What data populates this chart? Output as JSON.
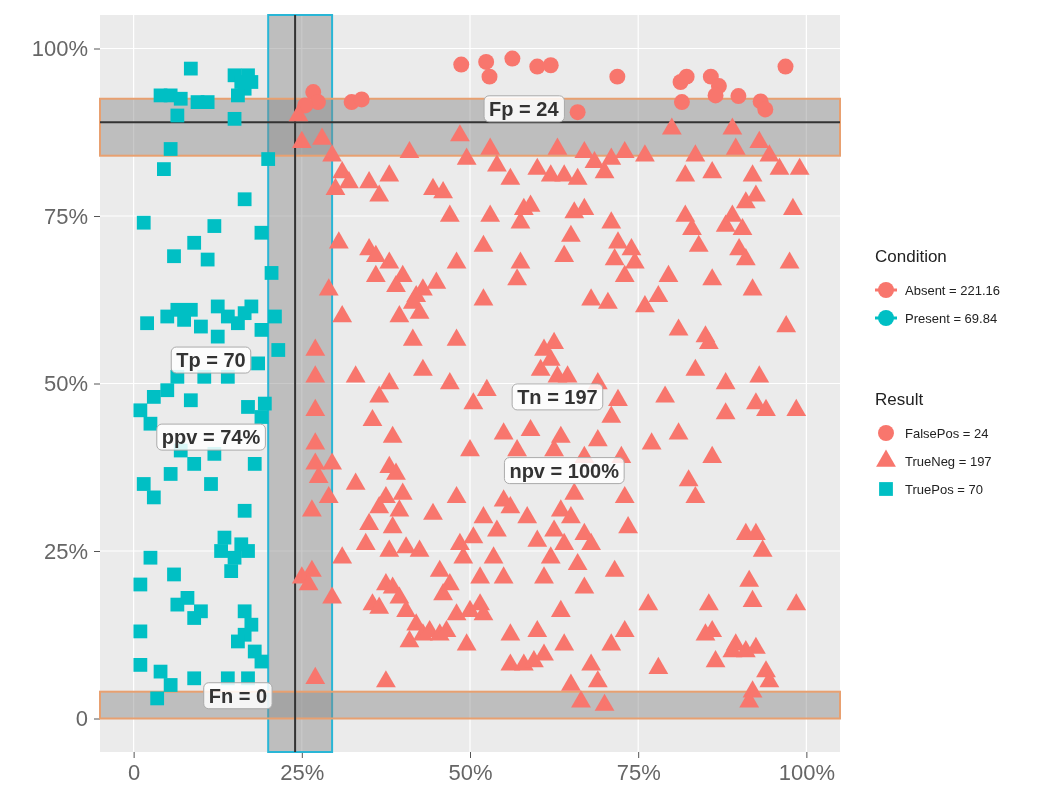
{
  "chart_data": {
    "type": "scatter",
    "xlim": [
      -5,
      105
    ],
    "ylim": [
      -5,
      105
    ],
    "xticks": [
      {
        "value": 0,
        "label": "0"
      },
      {
        "value": 25,
        "label": "25%"
      },
      {
        "value": 50,
        "label": "50%"
      },
      {
        "value": 75,
        "label": "75%"
      },
      {
        "value": 100,
        "label": "100%"
      }
    ],
    "yticks": [
      {
        "value": 0,
        "label": "0"
      },
      {
        "value": 25,
        "label": "25%"
      },
      {
        "value": 50,
        "label": "50%"
      },
      {
        "value": 75,
        "label": "75%"
      },
      {
        "value": 100,
        "label": "100%"
      }
    ],
    "grid": true,
    "legend": "right",
    "legend_title": "Result",
    "bands": [
      {
        "axis": "x",
        "from": 20,
        "to": 29.5,
        "color": "#29b6d6"
      },
      {
        "axis": "y",
        "from": 84,
        "to": 92.5,
        "color": "#e8a070"
      },
      {
        "axis": "y",
        "from": 0,
        "to": 4,
        "color": "#e8a070"
      }
    ],
    "ref_lines": [
      {
        "axis": "x",
        "value": 24,
        "color": "#333333"
      },
      {
        "axis": "y",
        "value": 89,
        "color": "#333333"
      }
    ],
    "annotations": [
      "Fp = 24",
      "Tp = 70",
      "ppv = 74%",
      "Tn = 197",
      "npv = 100%",
      "Fn = 0",
      "Condition",
      "Absent = 221.16",
      "Present = 69.84"
    ],
    "series": [
      {
        "name": "FalsePos = 24",
        "color": "#f8766d",
        "marker": "circle",
        "x": [
          26.7,
          27.4,
          32.4,
          33.9,
          48.7,
          52.4,
          56.3,
          52.9,
          60,
          71.9,
          81.3,
          82.2,
          85.8,
          87,
          89.9,
          93.2,
          93.9,
          96.9,
          81.5,
          86.5,
          66,
          62,
          25.5
        ],
        "values": [
          93.5,
          92,
          92,
          92.4,
          97.6,
          98,
          98.5,
          95.8,
          97.3,
          95.8,
          95,
          95.8,
          95.8,
          94.4,
          92.9,
          92.1,
          90.9,
          97.3,
          92,
          93,
          90.5,
          97.5,
          91.5
        ]
      },
      {
        "name": "TrueNeg = 197",
        "color": "#f8766d",
        "marker": "triangle",
        "x": [
          24.5,
          25,
          28,
          27,
          27,
          27,
          27,
          27.5,
          26.5,
          26.5,
          25,
          26,
          27,
          27,
          29.5,
          29,
          29.5,
          29.5,
          31,
          35,
          36.5,
          38,
          41,
          44.5,
          46,
          48.5,
          49.5,
          53,
          54,
          56,
          58,
          60,
          62,
          63,
          64,
          66,
          67,
          68.5,
          70,
          71,
          73,
          76,
          80,
          82,
          83.5,
          86,
          88,
          89,
          89.5,
          92,
          93,
          94.5,
          96,
          98,
          99,
          92.5,
          91,
          82,
          83,
          84,
          86,
          89,
          90,
          91,
          90.5,
          92,
          97.5,
          97,
          98.5,
          93,
          92.5,
          94,
          88,
          85,
          85.5,
          83.5,
          81,
          79,
          77,
          81,
          82.5,
          83.5,
          86,
          88,
          91,
          92.5,
          93.5,
          91.5,
          92,
          98.5,
          92.5,
          91,
          89.5,
          89,
          86,
          85,
          86.5,
          92,
          94,
          94.5,
          91.5,
          85.5,
          76.5,
          73.5,
          71.5,
          73,
          72.5,
          71,
          72,
          69,
          67,
          69,
          63,
          62,
          61,
          62.5,
          64.5,
          60.5,
          57,
          55,
          52.5,
          50.5,
          48,
          47,
          52,
          57,
          57.5,
          64,
          65,
          68,
          71.5,
          70.5,
          73,
          74,
          74.5,
          76,
          79.5,
          78,
          72,
          71,
          67,
          65.5,
          53,
          52,
          57.5,
          59,
          48,
          47,
          45,
          43,
          42,
          41.5,
          40,
          39,
          38,
          36,
          35,
          39.5,
          41.5,
          42.5,
          43,
          38,
          36.5,
          35.5,
          33,
          31,
          29,
          30.5,
          32,
          30,
          36,
          33,
          31,
          34.5,
          35,
          36.5,
          37.5,
          38.5,
          39,
          39.5,
          40,
          38.5,
          38,
          40.5,
          42.5,
          44.5,
          48,
          48.5,
          45.5,
          46,
          47,
          49,
          52,
          50.5,
          51.5,
          53.5,
          55,
          54,
          55,
          56,
          58.5,
          60,
          61,
          62,
          62.5,
          63.5,
          64,
          65,
          65.5,
          66,
          67,
          67,
          68,
          62.5,
          63.5,
          59,
          35.5,
          36.5,
          37.5,
          38.5,
          39.5,
          40.5,
          41,
          42,
          43,
          44,
          45.5,
          46.5,
          48,
          49.5,
          50,
          51.5,
          52,
          56,
          58,
          59.5,
          60,
          61,
          63.5,
          64,
          65,
          66.5,
          68,
          69,
          70,
          73,
          78,
          71,
          37.5,
          38,
          50,
          56
        ],
        "values": [
          90,
          86,
          86.5,
          55,
          51,
          46,
          41,
          36,
          31,
          22,
          21,
          20,
          6,
          38,
          38,
          33,
          18,
          84,
          81.5,
          80,
          78,
          81,
          84.5,
          79,
          78.5,
          87,
          83.5,
          85,
          82.5,
          80.5,
          76,
          82,
          81,
          85,
          81,
          80.5,
          84.5,
          83,
          81.5,
          83.5,
          84.5,
          84,
          88,
          81,
          84,
          81.5,
          73.5,
          88,
          85,
          81,
          86,
          84,
          82,
          76,
          82,
          78,
          77,
          75,
          73,
          70.5,
          65.5,
          75,
          70,
          68.5,
          73,
          64,
          68,
          58.5,
          46,
          51,
          47,
          46,
          50,
          57,
          56,
          52,
          58,
          48,
          41,
          42.5,
          35.5,
          33,
          39,
          45.5,
          27.5,
          27.5,
          25,
          20.5,
          17.5,
          17,
          10.5,
          10,
          11,
          10,
          13,
          12.5,
          8.5,
          4,
          7,
          5.5,
          2.5,
          17,
          17,
          28.5,
          22,
          33,
          39,
          45,
          47.5,
          50,
          39,
          41.5,
          51,
          53.5,
          55,
          56,
          51,
          52,
          40,
          42.5,
          49,
          47,
          56.5,
          50,
          62.5,
          65.5,
          68,
          69,
          72,
          62.5,
          68.5,
          62,
          66,
          70,
          68,
          61.5,
          66,
          63,
          71,
          74,
          76,
          75.5,
          75,
          70.5,
          74,
          76.5,
          68,
          75,
          65,
          64,
          63,
          62,
          66,
          64.5,
          68,
          66,
          70,
          60,
          56.5,
          60.5,
          52,
          50,
          48,
          44.5,
          51,
          60,
          64,
          71,
          80,
          79,
          69,
          35,
          24,
          26,
          29,
          31.5,
          33,
          42,
          36.5,
          31,
          33.5,
          28.5,
          25,
          25.5,
          25,
          30.5,
          33,
          26,
          22,
          18.5,
          20,
          24,
          30,
          27,
          21,
          24,
          21,
          28,
          32.5,
          31.5,
          30,
          26.5,
          21,
          24,
          28,
          31,
          26,
          30,
          33.5,
          23,
          19.5,
          27.5,
          26,
          40,
          42,
          43,
          17,
          16.5,
          20,
          19.5,
          18,
          16,
          11.5,
          14,
          12.5,
          13,
          12.5,
          13,
          15.5,
          11,
          16,
          17,
          15.5,
          12.5,
          8,
          8.5,
          13,
          9.5,
          16,
          11,
          5,
          2.5,
          8,
          5.5,
          2,
          13,
          7.5,
          11,
          5.5,
          37.5,
          40,
          8
        ]
      },
      {
        "name": "TruePos = 70",
        "color": "#00bfc4",
        "marker": "square",
        "x": [
          4,
          5.5,
          7,
          8.5,
          9.5,
          11,
          6.5,
          5.5,
          4.5,
          15,
          16,
          17,
          16.5,
          15.5,
          17.5,
          15,
          16.5,
          20,
          1.5,
          12,
          9,
          6,
          11,
          19,
          20.5,
          2,
          5,
          6.5,
          7.5,
          8.5,
          10,
          12.5,
          14,
          15.5,
          16.5,
          17.5,
          19,
          21,
          21.5,
          12.5,
          18.5,
          3,
          5,
          6.5,
          8.5,
          10.5,
          14,
          19.5,
          1,
          17,
          19,
          2.5,
          7,
          9,
          12,
          5.5,
          11.5,
          18,
          1.5,
          3,
          16.5,
          13.5,
          13,
          15,
          16,
          17,
          14.5,
          2.5,
          1,
          6,
          8,
          9,
          10,
          6.5,
          16.5,
          16.5,
          17.5,
          15.5,
          18,
          19,
          1,
          1,
          4,
          5.5,
          9,
          14,
          17,
          3.5
        ],
        "values": [
          93,
          93,
          92.5,
          97,
          92,
          92,
          90,
          85,
          82,
          96,
          95,
          96,
          94,
          93,
          95,
          89.5,
          77.5,
          83.5,
          74,
          73.5,
          71,
          69,
          68.5,
          72.5,
          66.5,
          59,
          60,
          61,
          59.5,
          61,
          58.5,
          61.5,
          60,
          59,
          60.5,
          61.5,
          58,
          60,
          55,
          57,
          53,
          48,
          49,
          51,
          47.5,
          51,
          51,
          47,
          46,
          46.5,
          45,
          44,
          40,
          38,
          39.5,
          36.5,
          35,
          38,
          35,
          33,
          31,
          27,
          25,
          24,
          26,
          25,
          22,
          24,
          20,
          21.5,
          18,
          15,
          16,
          17,
          16,
          12.5,
          14,
          11.5,
          10,
          8.5,
          13,
          8,
          7,
          5,
          6,
          6,
          6,
          3
        ]
      }
    ]
  }
}
